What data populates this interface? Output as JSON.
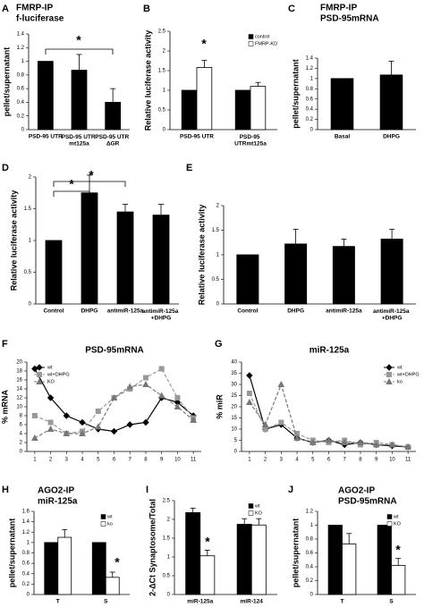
{
  "chart_data": [
    {
      "type": "bar",
      "panel": "A",
      "title": [
        "FMRP-IP",
        "f-luciferase"
      ],
      "ylabel": "pellet/supernatant",
      "categories": [
        "PSD-95 UTR",
        "PSD-95 UTR mt125a",
        "PSD-95 UTR ΔGR"
      ],
      "values": [
        1,
        0.87,
        0.4
      ],
      "errors": [
        null,
        0.23,
        0.2
      ],
      "color": "#000000",
      "ylim": [
        0,
        1.4
      ],
      "yticks": [
        0,
        0.2,
        0.4,
        0.6,
        0.8,
        1,
        1.2,
        1.4
      ],
      "annotations": [
        "*"
      ]
    },
    {
      "type": "grouped_bar",
      "panel": "B",
      "ylabel": "Relative luciferase activity",
      "categories": [
        "PSD-95 UTR",
        "PSD-95 UTRmt125a"
      ],
      "series": [
        {
          "name": "control",
          "color": "#000000",
          "values": [
            1,
            1
          ],
          "errors": [
            null,
            null
          ]
        },
        {
          "name": "FMRP-KD",
          "color": "#ffffff",
          "values": [
            1.58,
            1.1
          ],
          "errors": [
            0.18,
            0.1
          ]
        }
      ],
      "legend": "upper right",
      "ylim": [
        0,
        2.5
      ],
      "yticks": [
        0,
        0.5,
        1,
        1.5,
        2,
        2.5
      ],
      "annotations": [
        "*"
      ]
    },
    {
      "type": "bar",
      "panel": "C",
      "title": [
        "FMRP-IP",
        "PSD-95mRNA"
      ],
      "ylabel": "pellet/supernatant",
      "categories": [
        "Basal",
        "DHPG"
      ],
      "values": [
        1,
        1.07
      ],
      "errors": [
        null,
        0.27
      ],
      "color": "#000000",
      "ylim": [
        0,
        1.4
      ],
      "yticks": [
        0,
        0.2,
        0.4,
        0.6,
        0.8,
        1,
        1.2,
        1.4
      ]
    },
    {
      "type": "bar",
      "panel": "D",
      "ylabel": "Relative luciferase activity",
      "categories": [
        "Control",
        "DHPG",
        "antimiR-125a",
        "antimiR-125a +DHPG"
      ],
      "values": [
        1,
        1.75,
        1.45,
        1.4
      ],
      "errors": [
        null,
        0.28,
        0.12,
        0.17
      ],
      "color": "#000000",
      "ylim": [
        0,
        2
      ],
      "yticks": [
        0,
        0.5,
        1,
        1.5,
        2
      ],
      "annotations": [
        "*",
        "*"
      ]
    },
    {
      "type": "bar",
      "panel": "E",
      "ylabel": "Relative luciferase activity",
      "categories": [
        "Control",
        "DHPG",
        "antimiR-125a",
        "antimiR-125a +DHPG"
      ],
      "values": [
        1,
        1.22,
        1.17,
        1.32
      ],
      "errors": [
        null,
        0.3,
        0.15,
        0.2
      ],
      "color": "#000000",
      "ylim": [
        0,
        2
      ],
      "yticks": [
        0,
        0.5,
        1,
        1.5,
        2
      ]
    },
    {
      "type": "line",
      "panel": "F",
      "title": "PSD-95mRNA",
      "ylabel": "% mRNA",
      "x": [
        1,
        2,
        3,
        4,
        5,
        6,
        7,
        8,
        9,
        10,
        11
      ],
      "xlim": [
        0.5,
        11.5
      ],
      "xticks": [
        1,
        2,
        3,
        4,
        5,
        6,
        7,
        8,
        9,
        10,
        11
      ],
      "series": [
        {
          "name": "wt",
          "color": "#000000",
          "marker": "diamond",
          "dash": false,
          "values": [
            18.5,
            12,
            8,
            6.5,
            5,
            4.5,
            6,
            6.5,
            12,
            11,
            8
          ]
        },
        {
          "name": "wt+DHPG",
          "color": "#999999",
          "marker": "square",
          "dash": true,
          "values": [
            8,
            6.5,
            4,
            4.5,
            9,
            12,
            14,
            16.5,
            18.5,
            12,
            7.5
          ]
        },
        {
          "name": "KO",
          "color": "#777777",
          "marker": "triangle",
          "dash": true,
          "values": [
            3,
            5,
            4,
            4,
            5.5,
            12,
            14.5,
            15,
            12.5,
            10,
            7
          ]
        }
      ],
      "legend": "upper left",
      "ylim": [
        0,
        20
      ],
      "yticks": [
        0,
        2,
        4,
        6,
        8,
        10,
        12,
        14,
        16,
        18,
        20
      ]
    },
    {
      "type": "line",
      "panel": "G",
      "title": "miR-125a",
      "ylabel": "% miR",
      "x": [
        1,
        2,
        3,
        4,
        5,
        6,
        7,
        8,
        9,
        10,
        11
      ],
      "xlim": [
        0.5,
        11.5
      ],
      "xticks": [
        1,
        2,
        3,
        4,
        5,
        6,
        7,
        8,
        9,
        10,
        11
      ],
      "series": [
        {
          "name": "wt",
          "color": "#000000",
          "marker": "diamond",
          "dash": false,
          "values": [
            34,
            10,
            12,
            6,
            4,
            5,
            3,
            4,
            3,
            2.5,
            2
          ]
        },
        {
          "name": "wt+DHPG",
          "color": "#999999",
          "marker": "square",
          "dash": true,
          "values": [
            26,
            10,
            13,
            8,
            5,
            4,
            5,
            3,
            4,
            3,
            2
          ]
        },
        {
          "name": "ko",
          "color": "#777777",
          "marker": "triangle",
          "dash": true,
          "values": [
            22,
            12,
            30,
            6,
            4,
            5,
            4,
            4,
            3,
            3,
            2
          ]
        }
      ],
      "legend": "upper right",
      "ylim": [
        0,
        40
      ],
      "yticks": [
        0,
        5,
        10,
        15,
        20,
        25,
        30,
        35,
        40
      ]
    },
    {
      "type": "grouped_bar",
      "panel": "H",
      "title": [
        "AGO2-IP",
        "miR-125a"
      ],
      "ylabel": "pellet/supernatant",
      "categories": [
        "T",
        "S"
      ],
      "series": [
        {
          "name": "wt",
          "color": "#000000",
          "values": [
            1,
            1
          ],
          "errors": [
            null,
            null
          ]
        },
        {
          "name": "ko",
          "color": "#ffffff",
          "values": [
            1.1,
            0.33
          ],
          "errors": [
            0.15,
            0.1
          ]
        }
      ],
      "legend": "upper right",
      "ylim": [
        0,
        1.6
      ],
      "yticks": [
        0,
        0.2,
        0.4,
        0.6,
        0.8,
        1,
        1.2,
        1.4,
        1.6
      ],
      "annotations": [
        "*"
      ]
    },
    {
      "type": "grouped_bar",
      "panel": "I",
      "ylabel": "2-ΔCt Synaptosome/Total",
      "categories": [
        "miR-125a",
        "miR-124"
      ],
      "series": [
        {
          "name": "wt",
          "color": "#000000",
          "values": [
            2.18,
            1.87
          ],
          "errors": [
            0.12,
            0.15
          ]
        },
        {
          "name": "KO",
          "color": "#ffffff",
          "values": [
            1.03,
            1.85
          ],
          "errors": [
            0.15,
            0.17
          ]
        }
      ],
      "legend": "upper right",
      "ylim": [
        0,
        2.5
      ],
      "yticks": [
        0,
        0.5,
        1,
        1.5,
        2,
        2.5
      ],
      "annotations": [
        "*"
      ]
    },
    {
      "type": "grouped_bar",
      "panel": "J",
      "title": [
        "AGO2-IP",
        "PSD-95mRNA"
      ],
      "ylabel": "pellet/supernatant",
      "categories": [
        "T",
        "S"
      ],
      "series": [
        {
          "name": "wt",
          "color": "#000000",
          "values": [
            1,
            1
          ],
          "errors": [
            null,
            null
          ]
        },
        {
          "name": "KO",
          "color": "#ffffff",
          "values": [
            0.73,
            0.42
          ],
          "errors": [
            0.15,
            0.1
          ]
        }
      ],
      "legend": "upper right",
      "ylim": [
        0,
        1.2
      ],
      "yticks": [
        0,
        0.2,
        0.4,
        0.6,
        0.8,
        1,
        1.2
      ],
      "annotations": [
        "*"
      ]
    }
  ]
}
